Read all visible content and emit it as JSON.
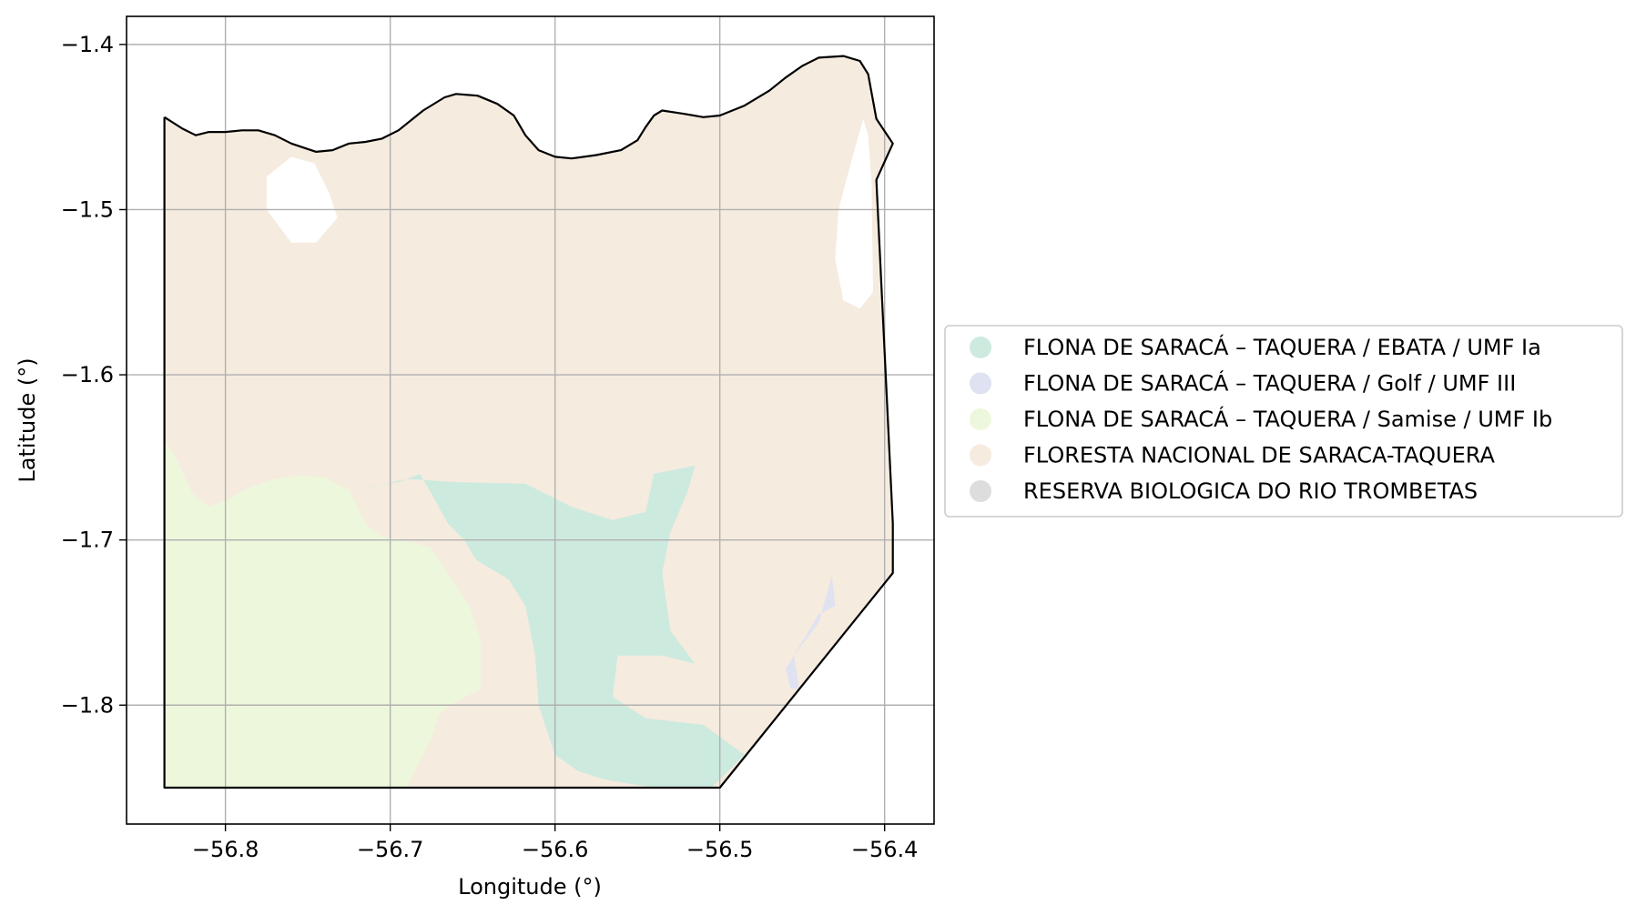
{
  "map": {
    "xlabel": "Longitude (°)",
    "ylabel": "Latitude (°)",
    "xlim": [
      -56.86,
      -56.37
    ],
    "ylim": [
      -1.872,
      -1.383
    ],
    "xticks": [
      -56.8,
      -56.7,
      -56.6,
      -56.5,
      -56.4
    ],
    "xtick_labels": [
      "−56.8",
      "−56.7",
      "−56.6",
      "−56.5",
      "−56.4"
    ],
    "yticks": [
      -1.4,
      -1.5,
      -1.6,
      -1.7,
      -1.8
    ],
    "ytick_labels": [
      "−1.4",
      "−1.5",
      "−1.6",
      "−1.7",
      "−1.8"
    ],
    "grid": true,
    "legend_placement": "center-left outside plot",
    "colors": {
      "ebata": "#cdeadf",
      "golf": "#dee2f1",
      "samise": "#edf7dc",
      "floresta": "#f5ebdf",
      "reserva": "#dddddd",
      "boundary": "#000000",
      "grid": "#b0b0b0"
    }
  },
  "legend": {
    "items": [
      {
        "label": "FLONA DE SARACÁ – TAQUERA / EBATA / UMF Ia",
        "color": "#cdeadf"
      },
      {
        "label": "FLONA DE SARACÁ – TAQUERA / Golf / UMF III",
        "color": "#dee2f1"
      },
      {
        "label": "FLONA DE SARACÁ – TAQUERA / Samise / UMF Ib",
        "color": "#edf7dc"
      },
      {
        "label": "FLORESTA NACIONAL DE SARACA-TAQUERA",
        "color": "#f5ebdf"
      },
      {
        "label": "RESERVA BIOLOGICA DO RIO TROMBETAS",
        "color": "#dddddd"
      }
    ]
  },
  "chart_data": {
    "type": "map",
    "xlabel": "Longitude (°)",
    "ylabel": "Latitude (°)",
    "xlim": [
      -56.86,
      -56.37
    ],
    "ylim": [
      -1.872,
      -1.383
    ],
    "grid": true,
    "legend": "center-left outside plot",
    "layers": [
      {
        "name": "FLORESTA NACIONAL DE SARACA-TAQUERA",
        "color": "#f5ebdf",
        "polygon": [
          [
            -56.837,
            -1.444
          ],
          [
            -56.826,
            -1.451
          ],
          [
            -56.818,
            -1.455
          ],
          [
            -56.81,
            -1.453
          ],
          [
            -56.8,
            -1.453
          ],
          [
            -56.79,
            -1.452
          ],
          [
            -56.78,
            -1.452
          ],
          [
            -56.77,
            -1.455
          ],
          [
            -56.76,
            -1.46
          ],
          [
            -56.745,
            -1.465
          ],
          [
            -56.735,
            -1.464
          ],
          [
            -56.725,
            -1.46
          ],
          [
            -56.715,
            -1.459
          ],
          [
            -56.705,
            -1.457
          ],
          [
            -56.695,
            -1.452
          ],
          [
            -56.68,
            -1.44
          ],
          [
            -56.667,
            -1.432
          ],
          [
            -56.66,
            -1.43
          ],
          [
            -56.647,
            -1.431
          ],
          [
            -56.635,
            -1.436
          ],
          [
            -56.625,
            -1.443
          ],
          [
            -56.618,
            -1.455
          ],
          [
            -56.61,
            -1.464
          ],
          [
            -56.6,
            -1.468
          ],
          [
            -56.59,
            -1.469
          ],
          [
            -56.575,
            -1.467
          ],
          [
            -56.56,
            -1.464
          ],
          [
            -56.55,
            -1.458
          ],
          [
            -56.545,
            -1.45
          ],
          [
            -56.54,
            -1.443
          ],
          [
            -56.535,
            -1.44
          ],
          [
            -56.522,
            -1.442
          ],
          [
            -56.51,
            -1.444
          ],
          [
            -56.5,
            -1.443
          ],
          [
            -56.485,
            -1.437
          ],
          [
            -56.47,
            -1.428
          ],
          [
            -56.46,
            -1.42
          ],
          [
            -56.45,
            -1.413
          ],
          [
            -56.44,
            -1.408
          ],
          [
            -56.425,
            -1.407
          ],
          [
            -56.415,
            -1.41
          ],
          [
            -56.41,
            -1.418
          ],
          [
            -56.405,
            -1.445
          ],
          [
            -56.395,
            -1.46
          ],
          [
            -56.405,
            -1.482
          ],
          [
            -56.395,
            -1.69
          ],
          [
            -56.395,
            -1.72
          ],
          [
            -56.5,
            -1.85
          ],
          [
            -56.837,
            -1.85
          ]
        ]
      },
      {
        "name": "FLONA DE SARACÁ – TAQUERA / Samise / UMF Ib",
        "color": "#edf7dc",
        "polygon": [
          [
            -56.837,
            -1.64
          ],
          [
            -56.83,
            -1.65
          ],
          [
            -56.82,
            -1.672
          ],
          [
            -56.81,
            -1.68
          ],
          [
            -56.8,
            -1.676
          ],
          [
            -56.785,
            -1.668
          ],
          [
            -56.77,
            -1.663
          ],
          [
            -56.755,
            -1.661
          ],
          [
            -56.74,
            -1.662
          ],
          [
            -56.725,
            -1.67
          ],
          [
            -56.715,
            -1.69
          ],
          [
            -56.705,
            -1.698
          ],
          [
            -56.69,
            -1.7
          ],
          [
            -56.675,
            -1.705
          ],
          [
            -56.665,
            -1.72
          ],
          [
            -56.652,
            -1.74
          ],
          [
            -56.645,
            -1.76
          ],
          [
            -56.645,
            -1.79
          ],
          [
            -56.66,
            -1.798
          ],
          [
            -56.67,
            -1.805
          ],
          [
            -56.675,
            -1.82
          ],
          [
            -56.685,
            -1.84
          ],
          [
            -56.69,
            -1.85
          ],
          [
            -56.837,
            -1.85
          ]
        ]
      },
      {
        "name": "FLONA DE SARACÁ – TAQUERA / EBATA / UMF Ia",
        "color": "#cdeadf",
        "polygon": [
          [
            -56.72,
            -1.67
          ],
          [
            -56.708,
            -1.667
          ],
          [
            -56.695,
            -1.665
          ],
          [
            -56.682,
            -1.66
          ],
          [
            -56.675,
            -1.672
          ],
          [
            -56.665,
            -1.69
          ],
          [
            -56.655,
            -1.7
          ],
          [
            -56.648,
            -1.712
          ],
          [
            -56.628,
            -1.724
          ],
          [
            -56.618,
            -1.74
          ],
          [
            -56.612,
            -1.77
          ],
          [
            -56.61,
            -1.8
          ],
          [
            -56.6,
            -1.83
          ],
          [
            -56.586,
            -1.84
          ],
          [
            -56.57,
            -1.845
          ],
          [
            -56.54,
            -1.85
          ],
          [
            -56.505,
            -1.85
          ],
          [
            -56.485,
            -1.83
          ],
          [
            -56.51,
            -1.812
          ],
          [
            -56.545,
            -1.808
          ],
          [
            -56.565,
            -1.795
          ],
          [
            -56.562,
            -1.77
          ],
          [
            -56.535,
            -1.77
          ],
          [
            -56.515,
            -1.775
          ],
          [
            -56.53,
            -1.755
          ],
          [
            -56.535,
            -1.72
          ],
          [
            -56.53,
            -1.695
          ],
          [
            -56.52,
            -1.672
          ],
          [
            -56.515,
            -1.655
          ],
          [
            -56.54,
            -1.66
          ],
          [
            -56.545,
            -1.683
          ],
          [
            -56.565,
            -1.688
          ],
          [
            -56.59,
            -1.68
          ],
          [
            -56.618,
            -1.666
          ],
          [
            -56.66,
            -1.665
          ],
          [
            -56.69,
            -1.663
          ],
          [
            -56.72,
            -1.67
          ]
        ]
      },
      {
        "name": "FLONA DE SARACÁ – TAQUERA / Golf / UMF III",
        "color": "#dee2f1",
        "polygon": [
          [
            -56.455,
            -1.77
          ],
          [
            -56.44,
            -1.75
          ],
          [
            -56.432,
            -1.722
          ],
          [
            -56.43,
            -1.74
          ],
          [
            -56.44,
            -1.745
          ],
          [
            -56.455,
            -1.77
          ],
          [
            -56.46,
            -1.778
          ],
          [
            -56.457,
            -1.79
          ],
          [
            -56.452,
            -1.79
          ],
          [
            -56.455,
            -1.77
          ]
        ]
      }
    ],
    "gaps": [
      {
        "name": "white inlet north-west",
        "polygon": [
          [
            -56.775,
            -1.48
          ],
          [
            -56.76,
            -1.468
          ],
          [
            -56.746,
            -1.472
          ],
          [
            -56.737,
            -1.49
          ],
          [
            -56.732,
            -1.505
          ],
          [
            -56.745,
            -1.52
          ],
          [
            -56.76,
            -1.52
          ],
          [
            -56.775,
            -1.5
          ]
        ]
      },
      {
        "name": "white strip east",
        "polygon": [
          [
            -56.413,
            -1.445
          ],
          [
            -56.42,
            -1.47
          ],
          [
            -56.428,
            -1.5
          ],
          [
            -56.43,
            -1.53
          ],
          [
            -56.425,
            -1.555
          ],
          [
            -56.415,
            -1.56
          ],
          [
            -56.407,
            -1.55
          ],
          [
            -56.408,
            -1.482
          ],
          [
            -56.41,
            -1.455
          ]
        ]
      }
    ],
    "boundary": [
      [
        -56.837,
        -1.444
      ],
      [
        -56.826,
        -1.451
      ],
      [
        -56.818,
        -1.455
      ],
      [
        -56.81,
        -1.453
      ],
      [
        -56.8,
        -1.453
      ],
      [
        -56.79,
        -1.452
      ],
      [
        -56.78,
        -1.452
      ],
      [
        -56.77,
        -1.455
      ],
      [
        -56.76,
        -1.46
      ],
      [
        -56.745,
        -1.465
      ],
      [
        -56.735,
        -1.464
      ],
      [
        -56.725,
        -1.46
      ],
      [
        -56.715,
        -1.459
      ],
      [
        -56.705,
        -1.457
      ],
      [
        -56.695,
        -1.452
      ],
      [
        -56.68,
        -1.44
      ],
      [
        -56.667,
        -1.432
      ],
      [
        -56.66,
        -1.43
      ],
      [
        -56.647,
        -1.431
      ],
      [
        -56.635,
        -1.436
      ],
      [
        -56.625,
        -1.443
      ],
      [
        -56.618,
        -1.455
      ],
      [
        -56.61,
        -1.464
      ],
      [
        -56.6,
        -1.468
      ],
      [
        -56.59,
        -1.469
      ],
      [
        -56.575,
        -1.467
      ],
      [
        -56.56,
        -1.464
      ],
      [
        -56.55,
        -1.458
      ],
      [
        -56.545,
        -1.45
      ],
      [
        -56.54,
        -1.443
      ],
      [
        -56.535,
        -1.44
      ],
      [
        -56.522,
        -1.442
      ],
      [
        -56.51,
        -1.444
      ],
      [
        -56.5,
        -1.443
      ],
      [
        -56.485,
        -1.437
      ],
      [
        -56.47,
        -1.428
      ],
      [
        -56.46,
        -1.42
      ],
      [
        -56.45,
        -1.413
      ],
      [
        -56.44,
        -1.408
      ],
      [
        -56.425,
        -1.407
      ],
      [
        -56.415,
        -1.41
      ],
      [
        -56.41,
        -1.418
      ],
      [
        -56.405,
        -1.445
      ],
      [
        -56.395,
        -1.46
      ],
      [
        -56.405,
        -1.482
      ],
      [
        -56.395,
        -1.69
      ],
      [
        -56.395,
        -1.72
      ],
      [
        -56.5,
        -1.85
      ],
      [
        -56.837,
        -1.85
      ],
      [
        -56.837,
        -1.444
      ]
    ]
  }
}
